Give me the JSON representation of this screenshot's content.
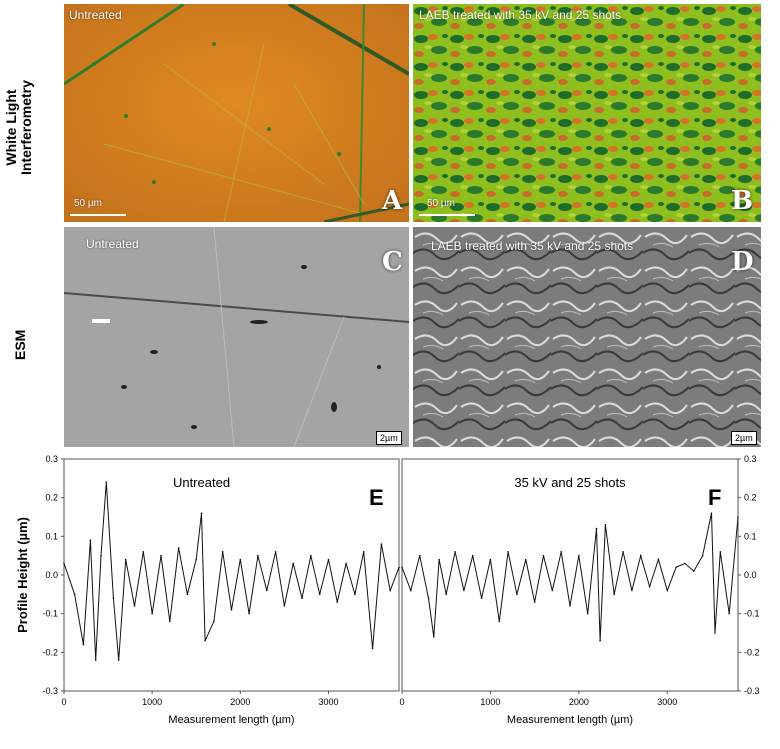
{
  "row_labels": {
    "wli_line1": "White Light",
    "wli_line2": "Interferometry",
    "esm": "ESM"
  },
  "panels": {
    "A": {
      "caption": "Untreated",
      "letter": "A",
      "scale": "50 µm"
    },
    "B": {
      "caption": "LAEB treated with 35 kV and 25 shots",
      "letter": "B",
      "scale": "50 µm"
    },
    "C": {
      "caption": "Untreated",
      "letter": "C",
      "scale": "2µm"
    },
    "D": {
      "caption": "LAEB treated with 35 kV and 25 shots",
      "letter": "D",
      "scale": "2µm"
    }
  },
  "colors": {
    "wli_untreated": "#d2801f",
    "wli_treated_green": "#8fbf1e",
    "wli_treated_dark": "#1e6b2a",
    "wli_treated_orange": "#d5732a",
    "esm_gray": "#9a9a9a",
    "line": "#111111"
  },
  "chart_data": [
    {
      "type": "line",
      "panel": "E",
      "annotation": "Untreated",
      "ylabel": "Profile Height (µm)",
      "xlabel": "Measurement length (µm)",
      "xlim": [
        0,
        3800
      ],
      "ylim": [
        -0.3,
        0.3
      ],
      "xticks": [
        "0",
        "1000",
        "2000",
        "3000"
      ],
      "yticks": [
        "0.3",
        "0.2",
        "0.1",
        "0.0",
        "-0.1",
        "-0.2",
        "-0.3"
      ],
      "series": [
        {
          "x": [
            0,
            120,
            220,
            300,
            360,
            420,
            480,
            560,
            620,
            700,
            800,
            900,
            1000,
            1100,
            1200,
            1300,
            1400,
            1500,
            1560,
            1600,
            1700,
            1800,
            1900,
            2000,
            2100,
            2200,
            2300,
            2400,
            2500,
            2600,
            2700,
            2800,
            2900,
            3000,
            3100,
            3200,
            3300,
            3400,
            3500,
            3600,
            3700,
            3800
          ],
          "y": [
            0.03,
            -0.05,
            -0.18,
            0.09,
            -0.22,
            0.05,
            0.24,
            -0.06,
            -0.22,
            0.04,
            -0.08,
            0.06,
            -0.1,
            0.05,
            -0.12,
            0.07,
            -0.05,
            0.04,
            0.16,
            -0.17,
            -0.12,
            0.06,
            -0.09,
            0.04,
            -0.1,
            0.05,
            -0.04,
            0.06,
            -0.08,
            0.03,
            -0.06,
            0.05,
            -0.05,
            0.04,
            -0.07,
            0.03,
            -0.05,
            0.06,
            -0.19,
            0.08,
            -0.04,
            0.02
          ]
        }
      ]
    },
    {
      "type": "line",
      "panel": "F",
      "annotation": "35 kV and 25 shots",
      "xlabel": "Measurement length (µm)",
      "xlim": [
        0,
        3800
      ],
      "ylim": [
        -0.3,
        0.3
      ],
      "xticks": [
        "0",
        "1000",
        "2000",
        "3000"
      ],
      "yticks": [
        "0.3",
        "0.2",
        "0.1",
        "0.0",
        "-0.1",
        "-0.2",
        "-0.3"
      ],
      "series": [
        {
          "x": [
            0,
            100,
            200,
            300,
            360,
            420,
            500,
            600,
            700,
            800,
            900,
            1000,
            1100,
            1200,
            1300,
            1400,
            1500,
            1600,
            1700,
            1800,
            1900,
            2000,
            2100,
            2200,
            2240,
            2300,
            2400,
            2500,
            2600,
            2700,
            2800,
            2900,
            3000,
            3100,
            3200,
            3300,
            3400,
            3500,
            3540,
            3600,
            3700,
            3800
          ],
          "y": [
            0.02,
            -0.04,
            0.05,
            -0.06,
            -0.16,
            0.04,
            -0.05,
            0.06,
            -0.04,
            0.05,
            -0.06,
            0.04,
            -0.12,
            0.06,
            -0.05,
            0.04,
            -0.07,
            0.05,
            -0.04,
            0.06,
            -0.08,
            0.05,
            -0.1,
            0.12,
            -0.17,
            0.13,
            -0.05,
            0.06,
            -0.04,
            0.05,
            -0.03,
            0.04,
            -0.04,
            0.02,
            0.03,
            0.01,
            0.05,
            0.16,
            -0.15,
            0.06,
            -0.1,
            0.15
          ]
        }
      ]
    }
  ]
}
